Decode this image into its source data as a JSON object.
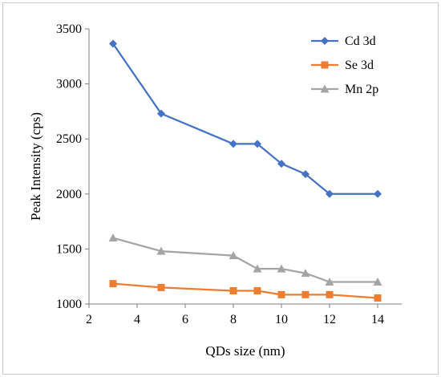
{
  "chart_data": {
    "type": "line",
    "xlabel": "QDs size (nm)",
    "ylabel": "Peak Intensity (cps)",
    "xlim": [
      2,
      15
    ],
    "ylim": [
      1000,
      3500
    ],
    "xticks": [
      2,
      4,
      6,
      8,
      10,
      12,
      14
    ],
    "yticks": [
      1000,
      1500,
      2000,
      2500,
      3000,
      3500
    ],
    "x": [
      3,
      5,
      8,
      9,
      10,
      11,
      12,
      14
    ],
    "grid": false,
    "legend_position": "top-right",
    "series": [
      {
        "name": "Cd 3d",
        "color": "#4472C4",
        "marker": "diamond",
        "values": [
          3365,
          2730,
          2455,
          2455,
          2275,
          2180,
          2000,
          2000
        ]
      },
      {
        "name": "Se 3d",
        "color": "#ED7D31",
        "marker": "square",
        "values": [
          1185,
          1150,
          1120,
          1120,
          1085,
          1085,
          1085,
          1055
        ]
      },
      {
        "name": "Mn 2p",
        "color": "#A5A5A5",
        "marker": "triangle",
        "values": [
          1600,
          1480,
          1440,
          1320,
          1320,
          1280,
          1200,
          1200
        ]
      }
    ]
  }
}
